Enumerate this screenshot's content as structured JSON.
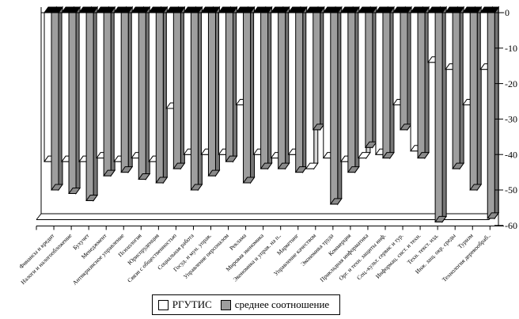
{
  "chart_data": {
    "type": "bar",
    "title": "",
    "xlabel": "",
    "ylabel": "",
    "orientation": "vertical-negative-3d",
    "categories": [
      "Финансы и кредит",
      "Налоги и налогообложение",
      "Бухучет",
      "Менеджмент",
      "Антикризисное управление",
      "Психология",
      "Юриспруденция",
      "Связи с общественностью",
      "Социальная работа",
      "Госуд. и мун. управ.",
      "Управление персоналом",
      "Реклама",
      "Мировая экономика",
      "Экономика и управ. на п..",
      "Маркетинг",
      "Управление качеством",
      "Экономика труда",
      "Коммерция",
      "Прикладная информатика",
      "Орг. и техн. защиты инф.",
      "Соц.-культ. сервис и тур.",
      "Информац. сист. и техн.",
      "Техн. текст. изд.",
      "Инж. защ. окр. среды",
      "Туризм",
      "Технология деревообраб.."
    ],
    "series": [
      {
        "name": "РГУТИС",
        "color": "#ffffff",
        "side_color": "#d6d6d6",
        "values": [
          -42,
          -42,
          -42,
          -41,
          -42,
          -41,
          -42,
          -27,
          -40,
          -40,
          -40,
          -26,
          -40,
          -41,
          -40,
          -44,
          -41,
          -42,
          -41,
          -40,
          -26,
          -39,
          -14,
          -16,
          -26,
          -16
        ]
      },
      {
        "name": "среднее соотношение",
        "color": "#9e9e9e",
        "side_color": "#757575",
        "values": [
          -50,
          -51,
          -53,
          -46,
          -45,
          -47,
          -48,
          -44,
          -50,
          -46,
          -42,
          -48,
          -44,
          -44,
          -45,
          -33,
          -54,
          -45,
          -38,
          -41,
          -33,
          -41,
          -59,
          -44,
          -50,
          -58
        ]
      }
    ],
    "ylim": [
      -60,
      0
    ],
    "yticks": [
      0,
      -10,
      -20,
      -30,
      -40,
      -50,
      -60
    ],
    "ytick_labels": [
      "0",
      "-10",
      "-20",
      "-30",
      "-40",
      "-50",
      "-60"
    ],
    "grid": false,
    "legend_position": "bottom-center",
    "cap_color": "#000000",
    "axis_color": "#000000"
  },
  "legend": {
    "items": [
      {
        "label": "РГУТИС",
        "swatch": "#ffffff"
      },
      {
        "label": "среднее соотношение",
        "swatch": "#9e9e9e"
      }
    ]
  }
}
